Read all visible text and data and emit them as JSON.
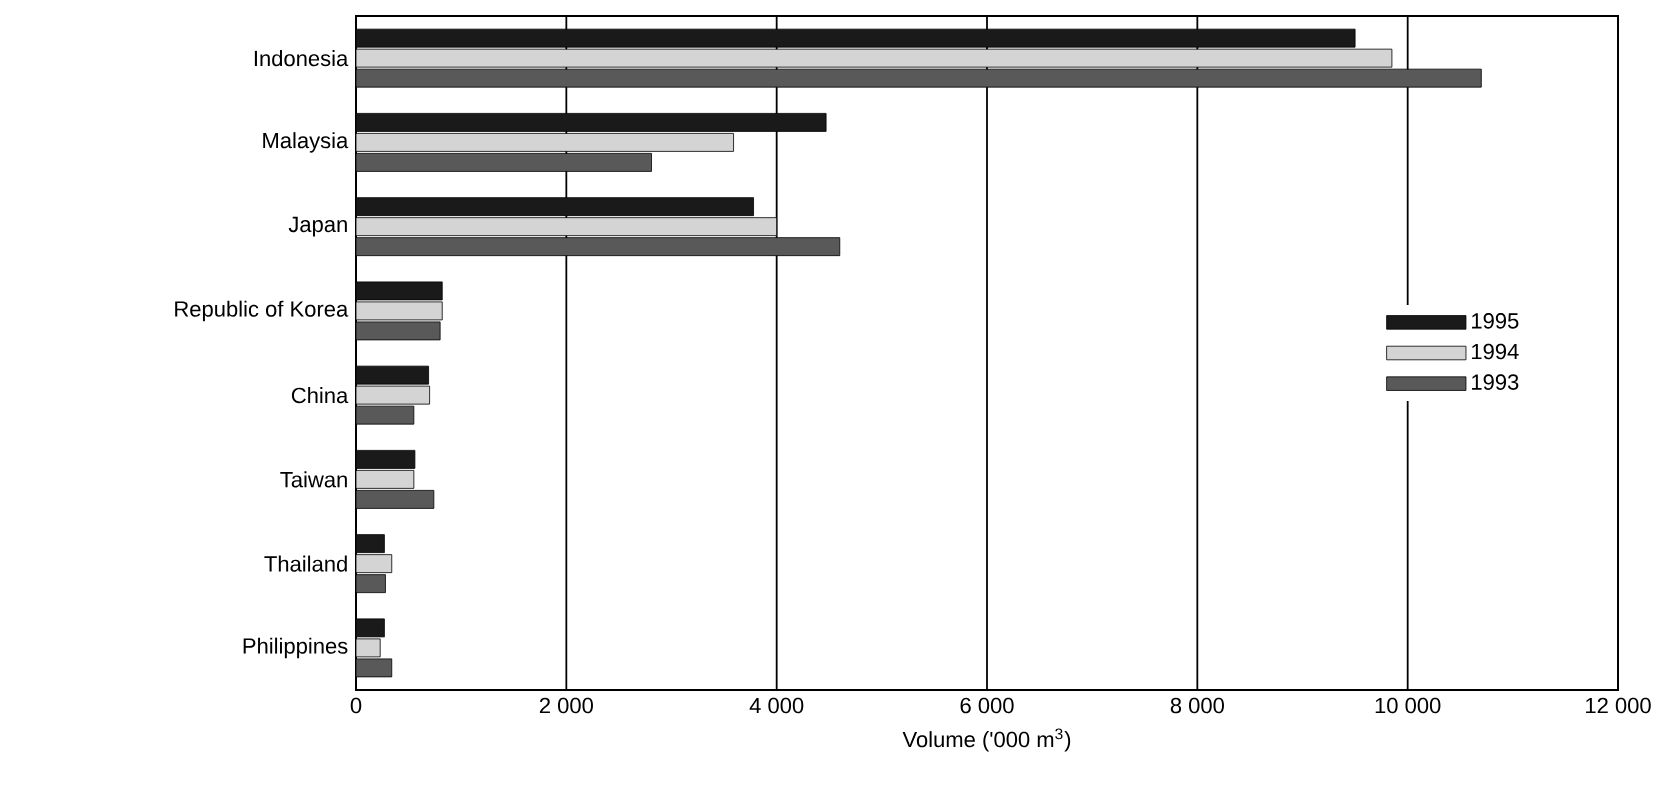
{
  "chart_data": {
    "type": "bar",
    "orientation": "horizontal",
    "xlabel": "Volume ('000 m$^{3}$)",
    "categories": [
      "Indonesia",
      "Malaysia",
      "Japan",
      "Republic of Korea",
      "China",
      "Taiwan",
      "Thailand",
      "Philippines"
    ],
    "series": [
      {
        "name": "1995",
        "color": "#1a1a1a",
        "values": [
          9500,
          4470,
          3780,
          820,
          690,
          560,
          270,
          270
        ]
      },
      {
        "name": "1994",
        "color": "#d4d4d4",
        "values": [
          9850,
          3590,
          4000,
          820,
          700,
          550,
          340,
          230
        ]
      },
      {
        "name": "1993",
        "color": "#595959",
        "values": [
          10700,
          2810,
          4600,
          800,
          550,
          740,
          280,
          340
        ]
      }
    ],
    "xlim": [
      0,
      12000
    ],
    "xticks": [
      0,
      {
        "value": 2000,
        "label": "2 000"
      },
      {
        "value": 4000,
        "label": "4 000"
      },
      {
        "value": 6000,
        "label": "6 000"
      },
      {
        "value": 8000,
        "label": "8 000"
      },
      {
        "value": 10000,
        "label": "10 000"
      },
      {
        "value": 12000,
        "label": "12 000"
      }
    ],
    "grid": "x",
    "legend": "right"
  }
}
